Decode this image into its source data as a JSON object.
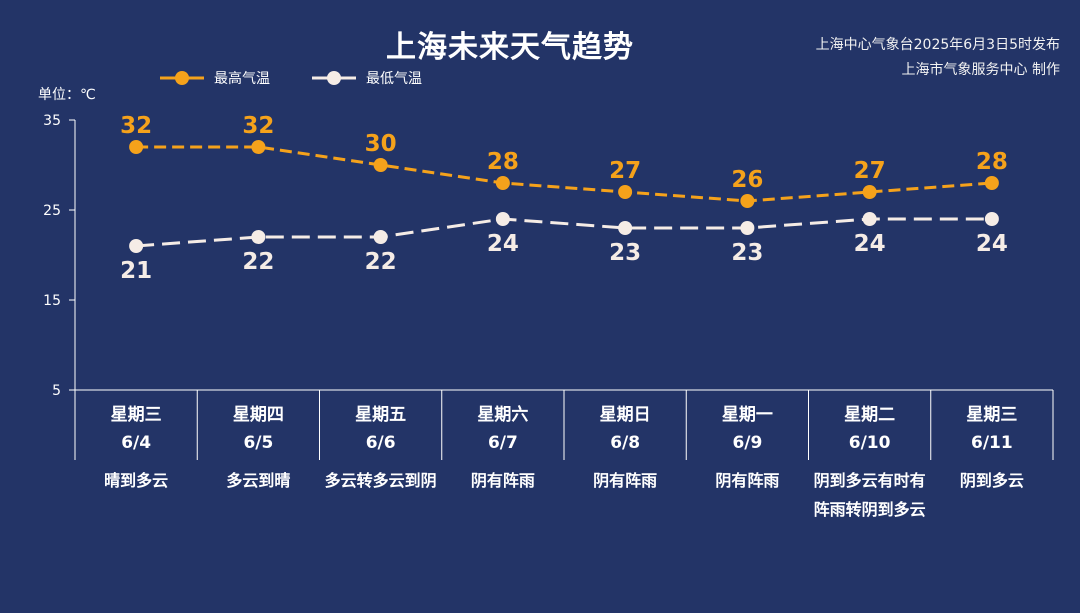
{
  "header": {
    "title": "上海未来天气趋势",
    "source_line1": "上海中心气象台2025年6月3日5时发布",
    "source_line2": "上海市气象服务中心 制作"
  },
  "legend": {
    "high_label": "最高气温",
    "low_label": "最低气温"
  },
  "unit_label": "单位：℃",
  "colors": {
    "background": "#233467",
    "high": "#f5a21b",
    "low": "#f5ece6",
    "axis": "#ffffff"
  },
  "days": [
    {
      "weekday": "星期三",
      "date": "6/4",
      "weather": "晴到多云"
    },
    {
      "weekday": "星期四",
      "date": "6/5",
      "weather": "多云到晴"
    },
    {
      "weekday": "星期五",
      "date": "6/6",
      "weather": "多云转多云到阴"
    },
    {
      "weekday": "星期六",
      "date": "6/7",
      "weather": "阴有阵雨"
    },
    {
      "weekday": "星期日",
      "date": "6/8",
      "weather": "阴有阵雨"
    },
    {
      "weekday": "星期一",
      "date": "6/9",
      "weather": "阴有阵雨"
    },
    {
      "weekday": "星期二",
      "date": "6/10",
      "weather": "阴到多云有时有阵雨转阴到多云"
    },
    {
      "weekday": "星期三",
      "date": "6/11",
      "weather": "阴到多云"
    }
  ],
  "chart_data": {
    "type": "line",
    "title": "上海未来天气趋势",
    "ylabel": "单位：℃",
    "categories": [
      "6/4",
      "6/5",
      "6/6",
      "6/7",
      "6/8",
      "6/9",
      "6/10",
      "6/11"
    ],
    "series": [
      {
        "name": "最高气温",
        "values": [
          32,
          32,
          30,
          28,
          27,
          26,
          27,
          28
        ],
        "color": "#f5a21b",
        "dashed": true
      },
      {
        "name": "最低气温",
        "values": [
          21,
          22,
          22,
          24,
          23,
          23,
          24,
          24
        ],
        "color": "#f5ece6",
        "dashed": true
      }
    ],
    "ylim": [
      5,
      35
    ],
    "yticks": [
      5,
      15,
      25,
      35
    ],
    "grid": false,
    "legend_position": "top-left"
  }
}
